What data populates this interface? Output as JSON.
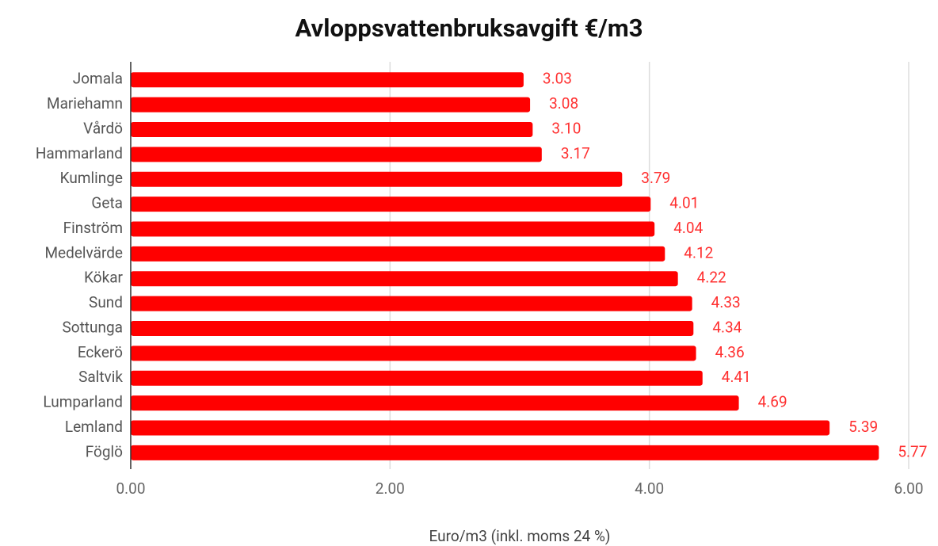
{
  "chart_data": {
    "type": "hbar",
    "title": "Avloppsvattenbruksavgift €/m3",
    "x_label": "Euro/m3 (inkl. moms 24 %)",
    "categories": [
      "Jomala",
      "Mariehamn",
      "Vårdö",
      "Hammarland",
      "Kumlinge",
      "Geta",
      "Finström",
      "Medelvärde",
      "Kökar",
      "Sund",
      "Sottunga",
      "Eckerö",
      "Saltvik",
      "Lumparland",
      "Lemland",
      "Föglö"
    ],
    "values": [
      3.03,
      3.08,
      3.1,
      3.17,
      3.79,
      4.01,
      4.04,
      4.12,
      4.22,
      4.33,
      4.34,
      4.36,
      4.41,
      4.69,
      5.39,
      5.77
    ],
    "value_labels": [
      "3.03",
      "3.08",
      "3.10",
      "3.17",
      "3.79",
      "4.01",
      "4.04",
      "4.12",
      "4.22",
      "4.33",
      "4.34",
      "4.36",
      "4.41",
      "4.69",
      "5.39",
      "5.77"
    ],
    "color": "#ff0000",
    "xlim": [
      0,
      6
    ],
    "xticks": [
      {
        "value": 0,
        "label": "0.00"
      },
      {
        "value": 2,
        "label": "2.00"
      },
      {
        "value": 4,
        "label": "4.00"
      },
      {
        "value": 6,
        "label": "6.00"
      }
    ],
    "grid": true
  }
}
